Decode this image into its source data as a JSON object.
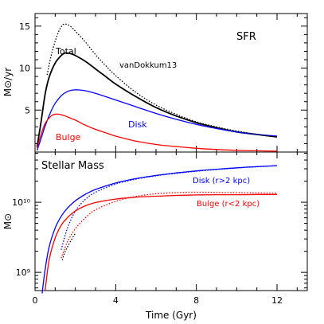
{
  "chart_data": [
    {
      "type": "line",
      "panel": "top",
      "title": "SFR",
      "ylabel": "M⊙/yr",
      "xlim": [
        0,
        13.5
      ],
      "ylim": [
        0,
        16.5
      ],
      "yticks": [
        5,
        10,
        15
      ],
      "ytick_labels": [
        "5",
        "10",
        "15"
      ],
      "x_tick_labels_shown": false,
      "series": [
        {
          "name": "Total",
          "color": "#000000",
          "style": "solid",
          "x": [
            0.1,
            0.3,
            0.5,
            0.7,
            1.0,
            1.3,
            1.5,
            1.8,
            2.0,
            2.5,
            3.0,
            3.5,
            4.0,
            5.0,
            6.0,
            7.0,
            8.0,
            9.0,
            10.0,
            11.0,
            12.0
          ],
          "values": [
            0.6,
            3.6,
            6.9,
            8.9,
            10.6,
            11.5,
            11.8,
            11.7,
            11.5,
            10.8,
            9.9,
            9.0,
            8.1,
            6.6,
            5.3,
            4.3,
            3.5,
            2.9,
            2.4,
            2.1,
            1.8
          ]
        },
        {
          "name": "Disk",
          "color": "#0000ff",
          "style": "solid",
          "x": [
            0.1,
            0.3,
            0.5,
            0.8,
            1.0,
            1.3,
            1.6,
            1.9,
            2.2,
            2.5,
            3.0,
            3.5,
            4.0,
            5.0,
            6.0,
            7.0,
            8.0,
            9.0,
            10.0,
            11.0,
            12.0
          ],
          "values": [
            0.2,
            1.6,
            3.1,
            4.9,
            5.8,
            6.7,
            7.2,
            7.4,
            7.4,
            7.3,
            7.0,
            6.6,
            6.2,
            5.4,
            4.6,
            3.9,
            3.3,
            2.8,
            2.4,
            2.1,
            1.9
          ]
        },
        {
          "name": "Bulge",
          "color": "#ff0000",
          "style": "solid",
          "x": [
            0.1,
            0.3,
            0.5,
            0.8,
            1.0,
            1.2,
            1.5,
            1.8,
            2.0,
            2.5,
            3.0,
            3.5,
            4.0,
            5.0,
            6.0,
            7.0,
            8.0,
            9.0,
            10.0,
            11.0,
            12.0
          ],
          "values": [
            0.5,
            2.1,
            3.4,
            4.3,
            4.5,
            4.5,
            4.3,
            4.0,
            3.8,
            3.2,
            2.7,
            2.3,
            1.9,
            1.3,
            0.9,
            0.65,
            0.45,
            0.3,
            0.2,
            0.15,
            0.1
          ]
        },
        {
          "name": "vanDokkum13",
          "color": "#000000",
          "style": "dotted",
          "x": [
            0.6,
            0.8,
            1.0,
            1.2,
            1.4,
            1.6,
            1.8,
            2.0,
            2.5,
            3.0,
            3.5,
            4.0,
            5.0,
            6.0,
            7.0,
            8.0,
            9.0,
            10.0,
            11.0,
            12.0
          ],
          "values": [
            9.2,
            11.5,
            13.2,
            14.5,
            15.2,
            15.2,
            14.9,
            14.4,
            13.1,
            11.6,
            10.3,
            9.1,
            7.1,
            5.6,
            4.5,
            3.6,
            3.0,
            2.5,
            2.1,
            1.8
          ]
        }
      ],
      "annotations": {
        "total": "Total",
        "vandokkum": "vanDokkum13",
        "disk": "Disk",
        "bulge": "Bulge"
      }
    },
    {
      "type": "line",
      "panel": "bottom",
      "title": "Stellar Mass",
      "xlabel": "Time (Gyr)",
      "ylabel": "M⊙",
      "yscale": "log",
      "xlim": [
        0,
        13.5
      ],
      "ylim": [
        550000000,
        52000000000
      ],
      "xticks": [
        0,
        4,
        8,
        12
      ],
      "xtick_labels": [
        "0",
        "4",
        "8",
        "12"
      ],
      "yticks": [
        1000000000,
        10000000000
      ],
      "ytick_labels": [
        "10⁹",
        "10¹⁰"
      ],
      "series": [
        {
          "name": "Disk (r>2 kpc)",
          "color": "#0000ff",
          "style": "solid",
          "x": [
            0.35,
            0.5,
            0.7,
            1.0,
            1.3,
            1.6,
            2.0,
            2.5,
            3.0,
            4.0,
            5.0,
            6.0,
            7.0,
            8.0,
            9.0,
            10.0,
            11.0,
            12.0
          ],
          "values": [
            500000000,
            1100000000,
            2300000000,
            4300000000,
            6300000000,
            8200000000,
            10500000000,
            13000000000,
            15200000000,
            18800000000,
            21700000000,
            24100000000,
            26200000000,
            28000000000,
            29600000000,
            31000000000,
            32200000000,
            33300000000
          ]
        },
        {
          "name": "Disk dotted",
          "color": "#0000ff",
          "style": "dotted",
          "x": [
            1.3,
            1.6,
            2.0,
            2.5,
            3.0,
            4.0,
            5.0,
            6.0,
            7.0,
            8.0,
            9.0,
            10.0,
            11.0,
            12.0
          ],
          "values": [
            2100000000,
            4200000000,
            7500000000,
            11000000000,
            13900000000,
            18200000000,
            21300000000,
            23800000000,
            25900000000,
            27700000000,
            29300000000,
            30800000000,
            32100000000,
            33200000000
          ]
        },
        {
          "name": "Bulge (r<2 kpc)",
          "color": "#ff0000",
          "style": "solid",
          "x": [
            0.5,
            0.7,
            1.0,
            1.3,
            1.6,
            2.0,
            2.5,
            3.0,
            4.0,
            5.0,
            6.0,
            7.0,
            8.0,
            9.0,
            10.0,
            11.0,
            12.0
          ],
          "values": [
            550000000,
            1500000000,
            3100000000,
            4700000000,
            6000000000,
            7500000000,
            8900000000,
            9900000000,
            11100000000,
            11800000000,
            12200000000,
            12500000000,
            12700000000,
            12800000000,
            12800000000,
            12900000000,
            12900000000
          ]
        },
        {
          "name": "Bulge dotted",
          "color": "#ff0000",
          "style": "dotted",
          "x": [
            1.3,
            1.6,
            2.0,
            2.5,
            3.0,
            4.0,
            5.0,
            6.0,
            7.0,
            8.0,
            9.0,
            10.0,
            11.0,
            12.0
          ],
          "values": [
            1600000000,
            2700000000,
            4200000000,
            6000000000,
            7800000000,
            10300000000,
            12100000000,
            13200000000,
            13700000000,
            13900000000,
            13800000000,
            13700000000,
            13600000000,
            13500000000
          ]
        },
        {
          "name": "Total dotted",
          "color": "#000000",
          "style": "dotted",
          "x": [
            1.35,
            1.5,
            1.8,
            2.0
          ],
          "values": [
            1500000000,
            2000000000,
            2900000000,
            3600000000
          ]
        }
      ],
      "annotations": {
        "disk": "Disk (r>2 kpc)",
        "bulge": "Bulge (r<2 kpc)"
      }
    }
  ]
}
